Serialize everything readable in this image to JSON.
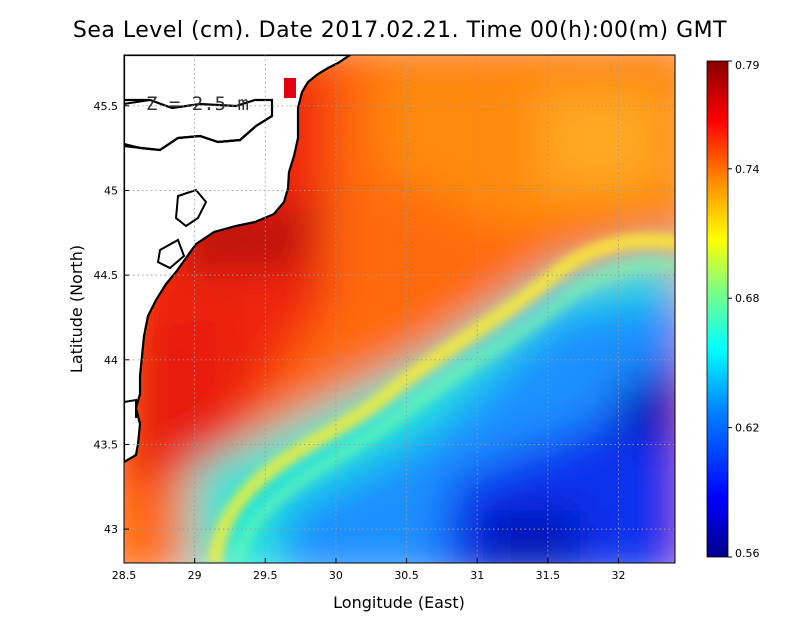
{
  "title": "Sea Level (cm). Date 2017.02.21. Time 00(h):00(m) GMT",
  "depth_label": "Z = 2.5 m",
  "chart_data": {
    "type": "heatmap",
    "title": "Sea Level (cm). Date 2017.02.21. Time 00(h):00(m) GMT",
    "xlabel": "Longitude (East)",
    "ylabel": "Latitude (North)",
    "xlim": [
      28.5,
      32.4
    ],
    "ylim": [
      42.8,
      45.8
    ],
    "x_ticks": [
      "28.5",
      "29",
      "29.5",
      "30",
      "30.5",
      "31",
      "31.5",
      "32"
    ],
    "x_tick_values": [
      28.5,
      29,
      29.5,
      30,
      30.5,
      31,
      31.5,
      32
    ],
    "y_ticks": [
      "43",
      "43.5",
      "44",
      "44.5",
      "45",
      "45.5"
    ],
    "y_tick_values": [
      43,
      43.5,
      44,
      44.5,
      45,
      45.5
    ],
    "colorbar": {
      "min": 0.56,
      "max": 0.79,
      "tick_labels": [
        "0.79",
        "0.74",
        "0.68",
        "0.62",
        "0.56"
      ],
      "tick_values": [
        0.79,
        0.74,
        0.68,
        0.62,
        0.56
      ],
      "colors": [
        "#000080",
        "#0000ff",
        "#0080ff",
        "#00ffff",
        "#80ff80",
        "#ffff00",
        "#ff8000",
        "#ff0000",
        "#800000"
      ]
    },
    "grid": true,
    "field_regions": [
      {
        "name": "western shelf",
        "value": 0.77
      },
      {
        "name": "northwest coastal high",
        "value": 0.79
      },
      {
        "name": "central",
        "value": 0.75
      },
      {
        "name": "northeast",
        "value": 0.74
      },
      {
        "name": "front",
        "value": 0.69
      },
      {
        "name": "southeast basin",
        "value": 0.6
      },
      {
        "name": "eastern minimum",
        "value": 0.57
      }
    ]
  }
}
